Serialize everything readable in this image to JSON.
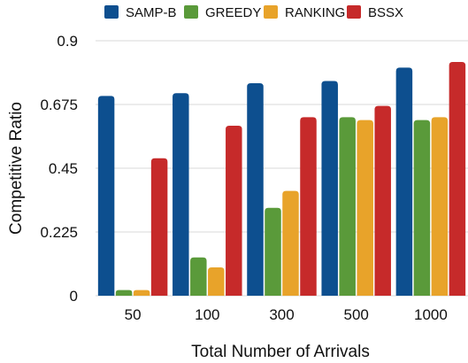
{
  "chart_data": {
    "type": "bar",
    "categories": [
      "50",
      "100",
      "300",
      "500",
      "1000"
    ],
    "series": [
      {
        "name": "SAMP-B",
        "values": [
          0.705,
          0.715,
          0.75,
          0.758,
          0.805
        ],
        "color": "#0d4f8f"
      },
      {
        "name": "GREEDY",
        "values": [
          0.02,
          0.135,
          0.31,
          0.63,
          0.62
        ],
        "color": "#5a9a3a"
      },
      {
        "name": "RANKING",
        "values": [
          0.02,
          0.1,
          0.37,
          0.62,
          0.63
        ],
        "color": "#e8a32a"
      },
      {
        "name": "BSSX",
        "values": [
          0.485,
          0.6,
          0.63,
          0.67,
          0.825
        ],
        "color": "#c62a2a"
      }
    ],
    "xlabel": "Total Number of Arrivals",
    "ylabel": "Competitive Ratio",
    "ylim": [
      0,
      0.9
    ],
    "yticks": [
      "0",
      "0.225",
      "0.45",
      "0.675",
      "0.9"
    ],
    "ytick_values": [
      0,
      0.225,
      0.45,
      0.675,
      0.9
    ],
    "grid": true,
    "legend": "top"
  }
}
